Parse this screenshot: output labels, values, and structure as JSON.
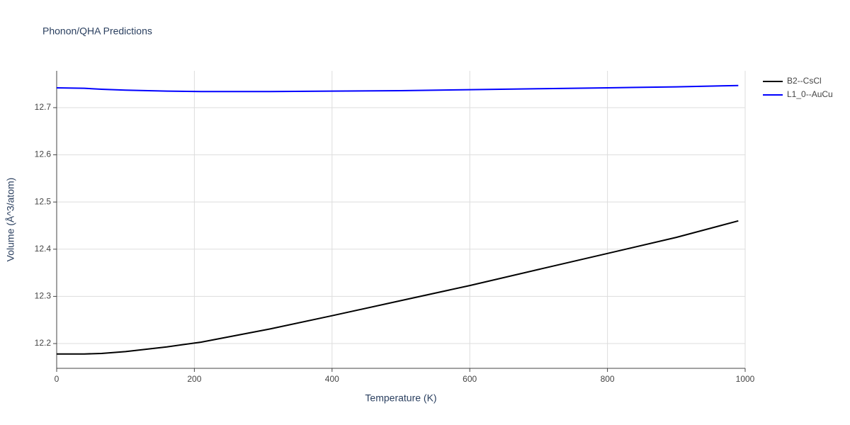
{
  "chart_data": {
    "type": "line",
    "title": "Phonon/QHA Predictions",
    "x_label": "Temperature (K)",
    "y_label": "Volume (Å^3/atom)",
    "x": [
      0,
      40,
      65,
      100,
      160,
      210,
      310,
      400,
      500,
      600,
      700,
      800,
      900,
      990
    ],
    "series": [
      {
        "name": "B2--CsCl",
        "color": "#000000",
        "values": [
          12.178,
          12.178,
          12.179,
          12.183,
          12.193,
          12.203,
          12.231,
          12.259,
          12.291,
          12.323,
          12.357,
          12.391,
          12.425,
          12.46
        ]
      },
      {
        "name": "L1_0--AuCu",
        "color": "#0000ff",
        "values": [
          12.742,
          12.741,
          12.739,
          12.737,
          12.735,
          12.734,
          12.734,
          12.735,
          12.736,
          12.738,
          12.74,
          12.742,
          12.744,
          12.747
        ]
      }
    ],
    "xlim": [
      0,
      1000
    ],
    "xticks": [
      0,
      200,
      400,
      600,
      800,
      1000
    ],
    "ylim": [
      12.1475,
      12.778
    ],
    "yticks": [
      12.2,
      12.3,
      12.4,
      12.5,
      12.6,
      12.7
    ],
    "grid": true,
    "legend": "outside-top-right"
  }
}
